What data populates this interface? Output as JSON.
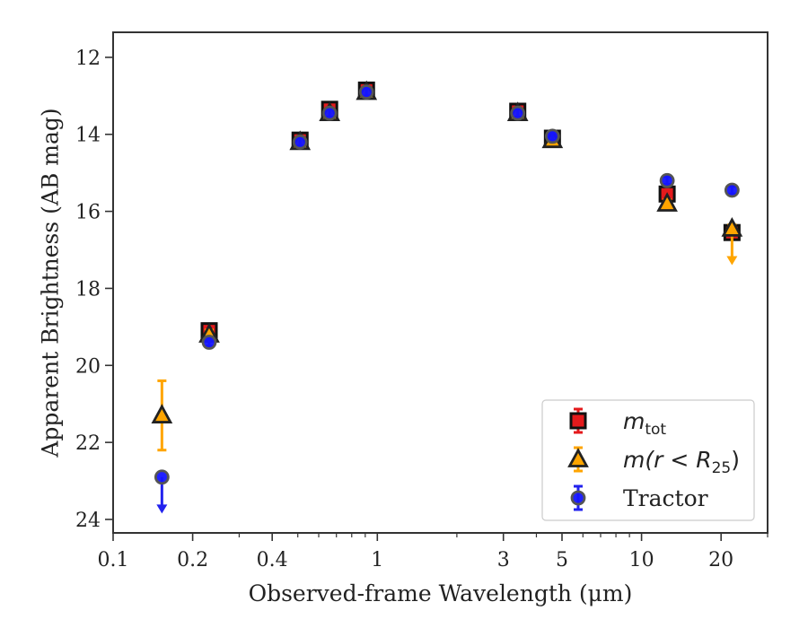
{
  "chart_data": {
    "type": "scatter",
    "title": "",
    "xlabel": "Observed-frame Wavelength (μm)",
    "ylabel": "Apparent Brightness (AB mag)",
    "x_scale": "log",
    "xlim": [
      0.1,
      30
    ],
    "ylim": [
      24.35,
      11.35
    ],
    "y_inverted": true,
    "x_ticks": [
      0.1,
      0.2,
      0.4,
      1,
      3,
      5,
      10,
      20
    ],
    "x_tick_labels": [
      "0.1",
      "0.2",
      "0.4",
      "1",
      "3",
      "5",
      "10",
      "20"
    ],
    "y_ticks": [
      12,
      14,
      16,
      18,
      20,
      22,
      24
    ],
    "y_tick_labels": [
      "12",
      "14",
      "16",
      "18",
      "20",
      "22",
      "24"
    ],
    "grid": false,
    "legend_position": "bottom-right",
    "series": [
      {
        "name": "m_tot",
        "legend_main": "m",
        "legend_sub": "tot",
        "marker": "square",
        "color": "#e41a1c",
        "edge_color": "#111111",
        "error_color": "#e41a1c",
        "points": [
          {
            "x": 0.231,
            "y": 19.1,
            "err": 0.15
          },
          {
            "x": 0.51,
            "y": 14.15,
            "err": 0.12
          },
          {
            "x": 0.66,
            "y": 13.35,
            "err": 0.12
          },
          {
            "x": 0.91,
            "y": 12.85,
            "err": 0.12
          },
          {
            "x": 3.4,
            "y": 13.4,
            "err": 0.1
          },
          {
            "x": 4.6,
            "y": 14.1,
            "err": 0.1
          },
          {
            "x": 12.5,
            "y": 15.55,
            "err": 0.1
          },
          {
            "x": 22.0,
            "y": 16.55,
            "err": 0.12
          }
        ]
      },
      {
        "name": "m(r < R25)",
        "legend_main": "m(r < R",
        "legend_sub": "25",
        "legend_close": ")",
        "marker": "triangle",
        "color": "#ffa500",
        "edge_color": "#222222",
        "error_color": "#ffa500",
        "points": [
          {
            "x": 0.153,
            "y": 21.3,
            "err": 0.9
          },
          {
            "x": 0.231,
            "y": 19.2,
            "err": 0.12
          },
          {
            "x": 0.51,
            "y": 14.2,
            "err": 0.1
          },
          {
            "x": 0.66,
            "y": 13.45,
            "err": 0.1
          },
          {
            "x": 0.91,
            "y": 12.9,
            "err": 0.1
          },
          {
            "x": 3.4,
            "y": 13.45,
            "err": 0.1
          },
          {
            "x": 4.6,
            "y": 14.15,
            "err": 0.1
          },
          {
            "x": 12.5,
            "y": 15.8,
            "err": 0.1
          },
          {
            "x": 22.0,
            "y": 16.45,
            "err": 0.1,
            "upper_limit": true
          }
        ]
      },
      {
        "name": "Tractor",
        "marker": "circle",
        "color": "#1515ff",
        "edge_color": "#555555",
        "error_color": "#2222ee",
        "points": [
          {
            "x": 0.153,
            "y": 22.9,
            "err": 0,
            "upper_limit": true
          },
          {
            "x": 0.231,
            "y": 19.4,
            "err": 0.1
          },
          {
            "x": 0.51,
            "y": 14.2,
            "err": 0.1
          },
          {
            "x": 0.66,
            "y": 13.45,
            "err": 0.1
          },
          {
            "x": 0.91,
            "y": 12.9,
            "err": 0.1
          },
          {
            "x": 3.4,
            "y": 13.45,
            "err": 0.1
          },
          {
            "x": 4.6,
            "y": 14.05,
            "err": 0.1
          },
          {
            "x": 12.5,
            "y": 15.2,
            "err": 0.1
          },
          {
            "x": 22.0,
            "y": 15.45,
            "err": 0.1
          }
        ]
      }
    ]
  }
}
